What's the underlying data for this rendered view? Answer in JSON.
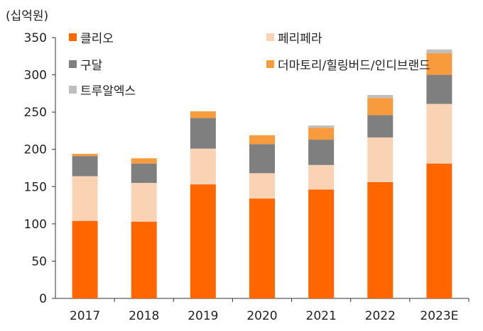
{
  "chart_data": {
    "type": "bar",
    "stacked": true,
    "unit_label": "(십억원)",
    "categories": [
      "2017",
      "2018",
      "2019",
      "2020",
      "2021",
      "2022",
      "2023E"
    ],
    "ylim": [
      0,
      350
    ],
    "yticks": [
      0,
      50,
      100,
      150,
      200,
      250,
      300,
      350
    ],
    "grid": false,
    "series": [
      {
        "name": "클리오",
        "color": "#ff6600",
        "values": [
          104,
          103,
          153,
          134,
          146,
          156,
          181
        ]
      },
      {
        "name": "페리페라",
        "color": "#fad3b4",
        "values": [
          60,
          52,
          48,
          34,
          33,
          60,
          80
        ]
      },
      {
        "name": "구달",
        "color": "#7f7f7f",
        "values": [
          27,
          26,
          41,
          39,
          34,
          30,
          39
        ]
      },
      {
        "name": "더마토리/힐링버드/인디브랜드",
        "color": "#f79b3d",
        "values": [
          3,
          7,
          9,
          12,
          16,
          23,
          29
        ]
      },
      {
        "name": "트루알엑스",
        "color": "#bfbfbf",
        "values": [
          0,
          0,
          0,
          0,
          3,
          4,
          5
        ]
      }
    ]
  }
}
